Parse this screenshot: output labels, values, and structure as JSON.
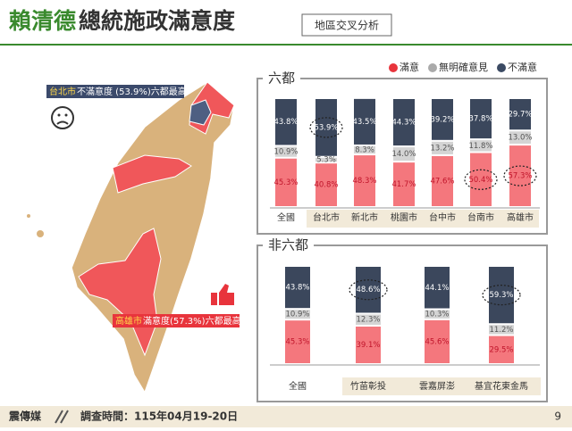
{
  "header": {
    "title_highlight": "賴清德",
    "title_rest": "總統施政滿意度",
    "tag": "地區交叉分析"
  },
  "annotations": {
    "taipei_city": "台北市",
    "taipei_text": "不滿意度 (53.9%)六都最高",
    "kaohsiung_city": "高雄市",
    "kaohsiung_text": "滿意度(57.3%)六都最高"
  },
  "footer": {
    "brand": "震傳媒",
    "survey_time": "調查時間：115年04月19-20日",
    "page": "9"
  },
  "chart_data": [
    {
      "type": "bar",
      "stacked": true,
      "title": "六都",
      "ylim": [
        0,
        100
      ],
      "categories": [
        "全國",
        "台北市",
        "新北市",
        "桃園市",
        "台中市",
        "台南市",
        "高雄市"
      ],
      "series": [
        {
          "name": "滿意",
          "color": "#f4777d",
          "values": [
            45.3,
            40.8,
            48.3,
            41.7,
            47.6,
            50.4,
            57.3
          ],
          "value_labels": [
            "45.3%",
            "40.8%",
            "48.3%",
            "41.7%",
            "47.6%",
            "50.4%",
            "57.3%"
          ]
        },
        {
          "name": "無明確意見",
          "color": "#d4d4d4",
          "values": [
            10.9,
            5.3,
            8.3,
            14.0,
            13.2,
            11.8,
            13.0
          ],
          "value_labels": [
            "10.9%",
            "5.3%",
            "8.3%",
            "14.0%",
            "13.2%",
            "11.8%",
            "13.0%"
          ]
        },
        {
          "name": "不滿意",
          "color": "#3b475c",
          "values": [
            43.8,
            53.9,
            43.5,
            44.3,
            39.2,
            37.8,
            29.7
          ],
          "value_labels": [
            "43.8%",
            "53.9%",
            "43.5%",
            "44.3%",
            "39.2%",
            "37.8%",
            "29.7%"
          ]
        }
      ],
      "highlights": [
        [
          2,
          1
        ],
        [
          0,
          5
        ],
        [
          0,
          6
        ]
      ]
    },
    {
      "type": "bar",
      "stacked": true,
      "title": "非六都",
      "ylim": [
        0,
        100
      ],
      "categories": [
        "全國",
        "竹苗彰投",
        "雲嘉屏澎",
        "基宜花東金馬"
      ],
      "series": [
        {
          "color": "#f4777d",
          "values": [
            45.3,
            39.1,
            45.6,
            29.5
          ],
          "value_labels": [
            "45.3%",
            "39.1%",
            "45.6%",
            "29.5%"
          ]
        },
        {
          "color": "#d4d4d4",
          "values": [
            10.9,
            12.3,
            10.3,
            11.2
          ],
          "value_labels": [
            "10.9%",
            "12.3%",
            "10.3%",
            "11.2%"
          ]
        },
        {
          "color": "#3b475c",
          "values": [
            43.8,
            48.6,
            44.1,
            59.3
          ],
          "value_labels": [
            "43.8%",
            "48.6%",
            "44.1%",
            "59.3%"
          ]
        }
      ],
      "highlights": [
        [
          2,
          1
        ],
        [
          2,
          3
        ]
      ]
    }
  ]
}
